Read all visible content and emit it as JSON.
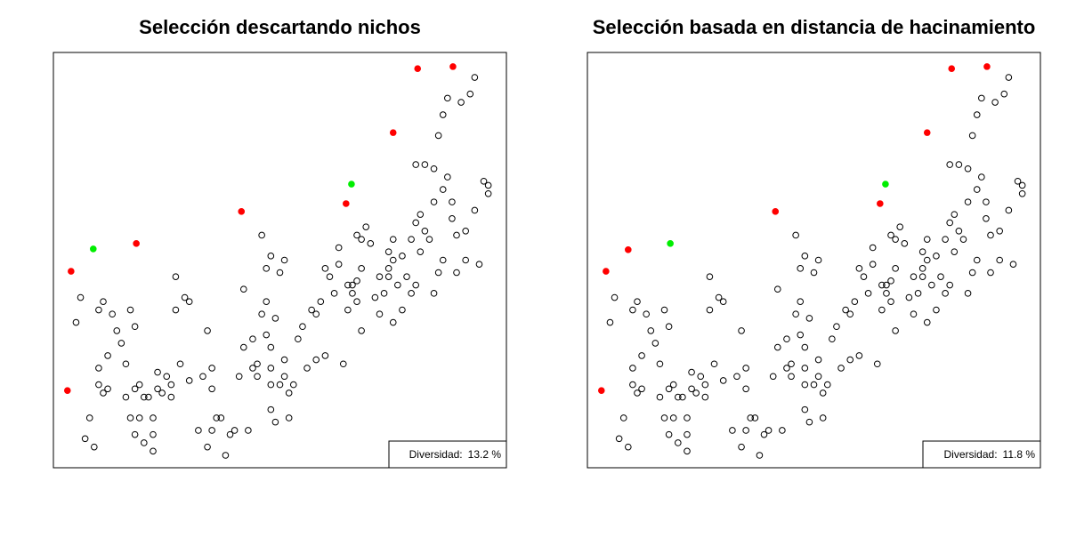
{
  "chart_data": [
    {
      "type": "scatter",
      "title": "Selección descartando nichos",
      "xlim": [
        0,
        100
      ],
      "ylim": [
        0,
        100
      ],
      "annotation": {
        "label": "Diversidad:",
        "value": 13.2,
        "value_label": "13.2 %"
      },
      "series": [
        {
          "color": "#000000",
          "filled": false,
          "x": [
            8,
            7,
            9,
            11,
            12,
            10,
            5,
            6,
            11,
            13,
            15,
            14,
            16,
            10,
            10,
            12,
            17,
            18,
            19,
            16,
            17,
            18,
            20,
            22,
            22,
            22,
            20,
            19,
            18,
            21,
            23,
            23,
            25,
            26,
            27,
            28,
            29,
            27,
            24,
            26,
            30,
            33,
            35,
            34,
            30,
            32,
            35,
            34,
            36,
            37,
            35,
            38,
            39,
            40,
            41,
            42,
            44,
            43,
            42,
            44,
            45,
            45,
            46,
            47,
            47,
            48,
            48,
            48,
            49,
            48,
            49,
            51,
            50,
            51,
            52,
            53,
            52,
            50,
            51,
            48,
            47,
            46,
            54,
            55,
            57,
            56,
            58,
            60,
            58,
            59,
            60,
            61,
            62,
            63,
            63,
            64,
            65,
            65,
            66,
            67,
            68,
            66,
            67,
            68,
            68,
            67,
            69,
            70,
            71,
            72,
            72,
            73,
            74,
            74,
            75,
            74,
            75,
            76,
            75,
            77,
            78,
            77,
            79,
            80,
            79,
            80,
            81,
            82,
            81,
            83,
            84,
            85,
            86,
            84,
            86,
            87,
            88,
            88,
            89,
            89,
            91,
            91,
            93,
            94,
            95,
            96,
            96,
            80,
            82,
            84,
            85,
            86,
            87,
            90,
            92,
            93
          ],
          "y": [
            12,
            7,
            5,
            18,
            27,
            38,
            35,
            41,
            40,
            37,
            30,
            33,
            25,
            24,
            20,
            19,
            38,
            34,
            12,
            17,
            12,
            8,
            6,
            4,
            8,
            12,
            17,
            20,
            19,
            17,
            19,
            23,
            22,
            20,
            38,
            25,
            41,
            46,
            18,
            17,
            21,
            22,
            24,
            33,
            40,
            9,
            9,
            5,
            12,
            12,
            19,
            3,
            8,
            9,
            22,
            29,
            24,
            9,
            43,
            31,
            25,
            22,
            37,
            40,
            32,
            24,
            20,
            14,
            11,
            29,
            36,
            26,
            20,
            22,
            18,
            20,
            12,
            47,
            50,
            51,
            48,
            56,
            31,
            34,
            38,
            24,
            26,
            27,
            37,
            40,
            48,
            46,
            42,
            49,
            53,
            25,
            38,
            44,
            44,
            45,
            48,
            42,
            40,
            33,
            55,
            56,
            58,
            54,
            41,
            37,
            46,
            42,
            48,
            52,
            50,
            46,
            55,
            44,
            35,
            38,
            46,
            51,
            55,
            44,
            42,
            59,
            61,
            57,
            52,
            55,
            42,
            47,
            50,
            64,
            67,
            70,
            64,
            60,
            56,
            47,
            50,
            57,
            62,
            49,
            69,
            68,
            66,
            73,
            73,
            72,
            80,
            85,
            89,
            88,
            90,
            94
          ]
        },
        {
          "color": "#ff0000",
          "filled": true,
          "x": [
            80.4,
            88.2,
            75.0,
            64.6,
            41.5,
            18.3,
            3.9,
            3.1
          ],
          "y": [
            96.1,
            96.6,
            80.7,
            63.6,
            61.7,
            54.0,
            47.3,
            18.6
          ]
        },
        {
          "color": "#00ee00",
          "filled": true,
          "x": [
            65.8,
            8.8
          ],
          "y": [
            68.3,
            52.7
          ]
        }
      ]
    },
    {
      "type": "scatter",
      "title": "Selección basada en distancia de hacinamiento",
      "xlim": [
        0,
        100
      ],
      "ylim": [
        0,
        100
      ],
      "annotation": {
        "label": "Diversidad:",
        "value": 11.8,
        "value_label": "11.8 %"
      },
      "series": [
        {
          "color": "#000000",
          "filled": false,
          "x": [
            8,
            7,
            9,
            11,
            12,
            10,
            5,
            6,
            11,
            13,
            15,
            14,
            16,
            10,
            10,
            12,
            17,
            18,
            19,
            16,
            17,
            18,
            20,
            22,
            22,
            22,
            20,
            19,
            18,
            21,
            23,
            23,
            25,
            26,
            27,
            28,
            29,
            27,
            24,
            26,
            30,
            33,
            35,
            34,
            30,
            32,
            35,
            34,
            36,
            37,
            35,
            38,
            39,
            40,
            41,
            42,
            44,
            43,
            42,
            44,
            45,
            45,
            46,
            47,
            47,
            48,
            48,
            48,
            49,
            48,
            49,
            51,
            50,
            51,
            52,
            53,
            52,
            50,
            51,
            48,
            47,
            46,
            54,
            55,
            57,
            56,
            58,
            60,
            58,
            59,
            60,
            61,
            62,
            63,
            63,
            64,
            65,
            65,
            66,
            67,
            68,
            66,
            67,
            68,
            68,
            67,
            69,
            70,
            71,
            72,
            72,
            73,
            74,
            74,
            75,
            74,
            75,
            76,
            75,
            77,
            78,
            77,
            79,
            80,
            79,
            80,
            81,
            82,
            81,
            83,
            84,
            85,
            86,
            84,
            86,
            87,
            88,
            88,
            89,
            89,
            91,
            91,
            93,
            94,
            95,
            96,
            96,
            80,
            82,
            84,
            85,
            86,
            87,
            90,
            92,
            93
          ],
          "y": [
            12,
            7,
            5,
            18,
            27,
            38,
            35,
            41,
            40,
            37,
            30,
            33,
            25,
            24,
            20,
            19,
            38,
            34,
            12,
            17,
            12,
            8,
            6,
            4,
            8,
            12,
            17,
            20,
            19,
            17,
            19,
            23,
            22,
            20,
            38,
            25,
            41,
            46,
            18,
            17,
            21,
            22,
            24,
            33,
            40,
            9,
            9,
            5,
            12,
            12,
            19,
            3,
            8,
            9,
            22,
            29,
            24,
            9,
            43,
            31,
            25,
            22,
            37,
            40,
            32,
            24,
            20,
            14,
            11,
            29,
            36,
            26,
            20,
            22,
            18,
            20,
            12,
            47,
            50,
            51,
            48,
            56,
            31,
            34,
            38,
            24,
            26,
            27,
            37,
            40,
            48,
            46,
            42,
            49,
            53,
            25,
            38,
            44,
            44,
            45,
            48,
            42,
            40,
            33,
            55,
            56,
            58,
            54,
            41,
            37,
            46,
            42,
            48,
            52,
            50,
            46,
            55,
            44,
            35,
            38,
            46,
            51,
            55,
            44,
            42,
            59,
            61,
            57,
            52,
            55,
            42,
            47,
            50,
            64,
            67,
            70,
            64,
            60,
            56,
            47,
            50,
            57,
            62,
            49,
            69,
            68,
            66,
            73,
            73,
            72,
            80,
            85,
            89,
            88,
            90,
            94
          ]
        },
        {
          "color": "#ff0000",
          "filled": true,
          "x": [
            80.4,
            88.2,
            75.0,
            64.6,
            41.5,
            9.0,
            4.1,
            3.1
          ],
          "y": [
            96.1,
            96.6,
            80.7,
            63.6,
            61.7,
            52.5,
            47.3,
            18.6
          ]
        },
        {
          "color": "#00ee00",
          "filled": true,
          "x": [
            65.8,
            18.3
          ],
          "y": [
            68.3,
            54.0
          ]
        }
      ]
    }
  ]
}
